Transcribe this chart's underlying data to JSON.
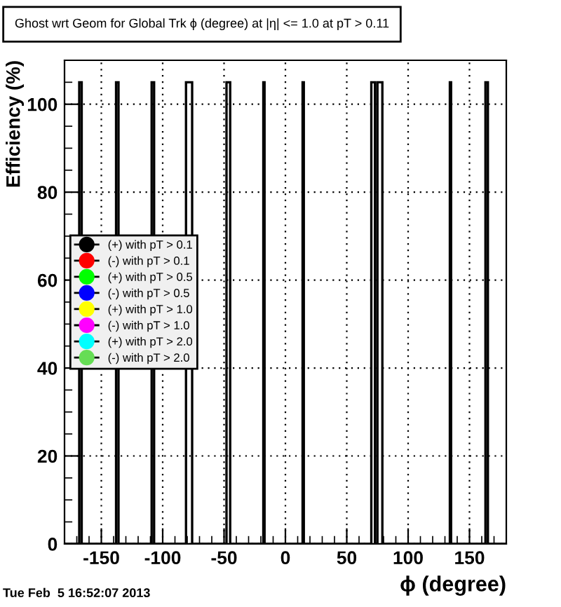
{
  "chart_data": {
    "type": "histogram",
    "title": "Ghost wrt Geom for Global Trk ϕ (degree) at |η| <= 1.0 at pT > 0.11",
    "xlabel": "ϕ (degree)",
    "ylabel": "Efficiency (%)",
    "annotations": [
      "Tue Feb  5 16:52:07 2013"
    ],
    "bins": [
      -180,
      -168,
      -166,
      -138,
      -136,
      -109,
      -107,
      -81,
      -76,
      -48,
      -45,
      -18,
      -17,
      14,
      15,
      70,
      73,
      75,
      79,
      134,
      135,
      163,
      165,
      180
    ],
    "series": [
      {
        "color": "#000000",
        "values": [
          0,
          105,
          0,
          105,
          0,
          105,
          0,
          105,
          0,
          105,
          0,
          105,
          0,
          105,
          0,
          105,
          0,
          105,
          0,
          105,
          0,
          105,
          0
        ]
      },
      {
        "type": "scatter",
        "name": "(+) with pT > 0.1",
        "color": "#000000"
      },
      {
        "type": "scatter",
        "name": "(-) with pT > 0.1",
        "color": "#ff0000"
      },
      {
        "type": "scatter",
        "name": "(+) with pT > 0.5",
        "color": "#00ff00"
      },
      {
        "type": "scatter",
        "name": "(-) with pT > 0.5",
        "color": "#0000ff"
      },
      {
        "type": "scatter",
        "name": "(+) with pT > 1.0",
        "color": "#ffff00"
      },
      {
        "type": "scatter",
        "name": "(-) with pT > 1.0",
        "color": "#ff00ff"
      },
      {
        "type": "scatter",
        "name": "(+) with pT > 2.0",
        "color": "#00ffff"
      },
      {
        "type": "scatter",
        "name": "(-) with pT > 2.0",
        "color": "#66dd55"
      }
    ],
    "xlim": [
      -180,
      180
    ],
    "xticks": [
      -150,
      -100,
      -50,
      0,
      50,
      100,
      150
    ],
    "ylim": [
      0,
      110
    ],
    "yticks": [
      0,
      20,
      40,
      60,
      80,
      100
    ],
    "grid": true,
    "legend": "left",
    "marker": "circle"
  }
}
